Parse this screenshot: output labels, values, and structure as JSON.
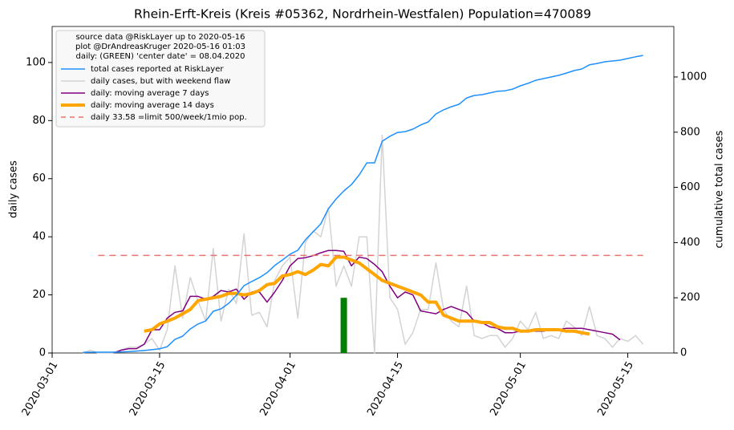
{
  "chart_data": {
    "type": "line",
    "title": "Rhein-Erft-Kreis (Kreis #05362, Nordrhein-Westfalen) Population=470089",
    "y_label": "daily cases",
    "y_label_color": "#800080",
    "y2_label": "cumulative total cases",
    "y2_label_color": "#1e90ff",
    "legend_title": [
      "source data @RiskLayer up to 2020-05-16",
      "plot @DrAndreasKruger 2020-05-16 01:03",
      "daily: (GREEN) 'center date' = 08.04.2020"
    ],
    "legend": "upper left",
    "xlim": [
      "2020-03-01",
      "2020-05-21"
    ],
    "xticks": [
      "2020-03-01",
      "2020-03-15",
      "2020-04-01",
      "2020-04-15",
      "2020-05-01",
      "2020-05-15"
    ],
    "ylim": [
      0,
      112.4
    ],
    "yticks": [
      0,
      20,
      40,
      60,
      80,
      100
    ],
    "y2lim": [
      0,
      1183
    ],
    "y2ticks": [
      0,
      200,
      400,
      600,
      800,
      1000
    ],
    "x": [
      "2020-03-05",
      "2020-03-06",
      "2020-03-07",
      "2020-03-08",
      "2020-03-09",
      "2020-03-10",
      "2020-03-11",
      "2020-03-12",
      "2020-03-13",
      "2020-03-14",
      "2020-03-15",
      "2020-03-16",
      "2020-03-17",
      "2020-03-18",
      "2020-03-19",
      "2020-03-20",
      "2020-03-21",
      "2020-03-22",
      "2020-03-23",
      "2020-03-24",
      "2020-03-25",
      "2020-03-26",
      "2020-03-27",
      "2020-03-28",
      "2020-03-29",
      "2020-03-30",
      "2020-03-31",
      "2020-04-01",
      "2020-04-02",
      "2020-04-03",
      "2020-04-04",
      "2020-04-05",
      "2020-04-06",
      "2020-04-07",
      "2020-04-08",
      "2020-04-09",
      "2020-04-10",
      "2020-04-11",
      "2020-04-12",
      "2020-04-13",
      "2020-04-14",
      "2020-04-15",
      "2020-04-16",
      "2020-04-17",
      "2020-04-18",
      "2020-04-19",
      "2020-04-20",
      "2020-04-21",
      "2020-04-22",
      "2020-04-23",
      "2020-04-24",
      "2020-04-25",
      "2020-04-26",
      "2020-04-27",
      "2020-04-28",
      "2020-04-29",
      "2020-04-30",
      "2020-05-01",
      "2020-05-02",
      "2020-05-03",
      "2020-05-04",
      "2020-05-05",
      "2020-05-06",
      "2020-05-07",
      "2020-05-08",
      "2020-05-09",
      "2020-05-10",
      "2020-05-11",
      "2020-05-12",
      "2020-05-13",
      "2020-05-14",
      "2020-05-15",
      "2020-05-16",
      "2020-05-17"
    ],
    "series": [
      {
        "name": "total cases reported at RiskLayer",
        "color": "#1e90ff",
        "width": 1.5,
        "axis": "y2",
        "values": [
          2,
          3,
          3,
          3,
          3,
          4,
          5,
          7,
          9,
          12,
          15,
          23,
          49,
          61,
          87,
          105,
          116,
          151,
          160,
          180,
          209,
          244,
          259,
          273,
          291,
          317,
          337,
          358,
          372,
          410,
          439,
          468,
          523,
          558,
          587,
          610,
          645,
          689,
          689,
          767,
          785,
          799,
          802,
          811,
          826,
          837,
          866,
          881,
          892,
          901,
          924,
          933,
          936,
          942,
          948,
          950,
          956,
          968,
          977,
          988,
          994,
          1000,
          1006,
          1014,
          1023,
          1029,
          1044,
          1049,
          1055,
          1058,
          1061,
          1067,
          1073,
          1078
        ]
      },
      {
        "name": "daily cases, but with weekend flaw",
        "color": "#d3d3d3",
        "width": 1.5,
        "values": [
          0,
          1,
          0,
          0,
          0,
          1,
          2,
          2,
          3,
          5,
          1,
          8,
          30,
          12,
          26,
          18,
          11,
          36,
          11,
          22,
          17,
          41,
          13,
          14,
          9,
          25,
          30,
          33,
          12,
          38,
          42,
          40,
          50,
          23,
          30,
          23,
          40,
          40,
          0,
          75,
          19,
          15,
          3,
          7,
          15,
          15,
          31,
          15,
          11,
          9,
          23,
          6,
          5,
          6,
          6,
          2,
          5,
          11,
          8,
          14,
          5,
          6,
          5,
          11,
          9,
          6,
          16,
          6,
          5,
          2,
          5,
          4,
          6,
          3
        ]
      },
      {
        "name": "daily: moving average 7 days",
        "color": "#800080",
        "width": 1.5,
        "values": [
          null,
          null,
          null,
          null,
          0,
          1,
          1.5,
          1.5,
          3,
          8,
          8,
          12,
          14,
          14.5,
          19.5,
          19.5,
          18.5,
          19.5,
          21.5,
          21,
          22,
          18.5,
          21,
          21,
          17.5,
          21,
          25,
          30,
          32.5,
          32.8,
          33.5,
          34.5,
          35.3,
          35.3,
          35,
          30,
          33,
          32.5,
          30.5,
          28,
          23,
          19,
          21,
          20,
          14.5,
          14,
          13.5,
          15,
          16,
          15,
          14,
          11,
          10.5,
          9,
          8.5,
          7,
          7,
          7.5,
          7.5,
          7.5,
          7.5,
          8,
          8,
          8.5,
          8.5,
          8.5,
          8,
          7.5,
          7,
          6.5,
          4.5,
          null,
          null,
          null
        ]
      },
      {
        "name": "daily: moving average 14 days",
        "color": "#ffa500",
        "width": 4,
        "values": [
          null,
          null,
          null,
          null,
          null,
          null,
          null,
          null,
          7.5,
          8,
          10,
          11,
          12,
          13.5,
          15,
          18,
          18.5,
          19,
          19.5,
          20.5,
          20.5,
          20,
          20.5,
          21.5,
          23.5,
          24,
          26.5,
          27,
          28,
          27,
          28.5,
          30.5,
          30,
          33,
          33,
          32,
          31,
          29,
          27,
          25,
          24,
          23,
          22,
          21,
          20,
          17.5,
          17.5,
          13,
          12,
          11,
          11,
          11,
          10.5,
          10.5,
          9,
          8.5,
          8.5,
          7.5,
          7.5,
          8,
          8,
          8,
          8,
          7.5,
          7.5,
          7,
          6.5,
          null,
          null,
          null,
          null,
          null,
          null,
          null
        ]
      },
      {
        "name": "daily 33.58 =limit 500/week/1mio pop.",
        "color": "#e8756b",
        "width": 1.5,
        "dashed": true,
        "x": [
          "2020-03-07",
          "2020-05-17"
        ],
        "values": [
          33.58,
          33.58
        ]
      }
    ],
    "center_bar": {
      "x": "2020-04-08",
      "value": 19,
      "color": "#008000"
    }
  }
}
